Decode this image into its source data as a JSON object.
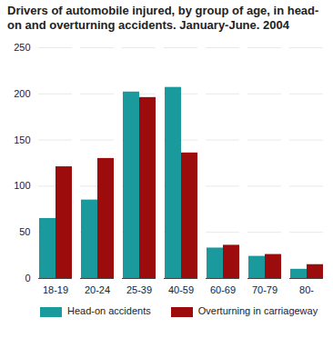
{
  "chart_data": {
    "type": "bar",
    "title": "Drivers of automobile injured, by group of age, in head-on and overturning accidents. January-June. 2004",
    "categories": [
      "18-19",
      "20-24",
      "25-39",
      "40-59",
      "60-69",
      "70-79",
      "80-"
    ],
    "series": [
      {
        "name": "Head-on accidents",
        "color": "#1a9a9c",
        "values": [
          65,
          85,
          202,
          207,
          33,
          24,
          10
        ]
      },
      {
        "name": "Overturning in carriageway",
        "color": "#9c0c0c",
        "values": [
          121,
          130,
          196,
          136,
          36,
          26,
          15
        ]
      }
    ],
    "ylim": [
      0,
      250
    ],
    "yticks": [
      0,
      50,
      100,
      150,
      200,
      250
    ],
    "grid": true
  }
}
